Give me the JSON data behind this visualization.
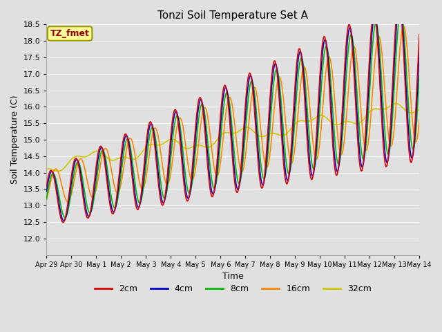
{
  "title": "Tonzi Soil Temperature Set A",
  "xlabel": "Time",
  "ylabel": "Soil Temperature (C)",
  "ylim": [
    11.5,
    18.5
  ],
  "yticks": [
    12.0,
    12.5,
    13.0,
    13.5,
    14.0,
    14.5,
    15.0,
    15.5,
    16.0,
    16.5,
    17.0,
    17.5,
    18.0,
    18.5
  ],
  "colors": {
    "2cm": "#dd0000",
    "4cm": "#0000cc",
    "8cm": "#00bb00",
    "16cm": "#ff8800",
    "32cm": "#cccc00"
  },
  "legend_label": "TZ_fmet",
  "legend_box_bg": "#ffff99",
  "legend_box_edge": "#999900",
  "line_width": 1.2,
  "x_tick_labels": [
    "Apr 29",
    "Apr 30",
    "May 1",
    "May 2",
    "May 3",
    "May 4",
    "May 5",
    "May 6",
    "May 7",
    "May 8",
    "May 9",
    "May 10",
    "May 11",
    "May 12",
    "May 13",
    "May 14"
  ],
  "n_points": 1500
}
